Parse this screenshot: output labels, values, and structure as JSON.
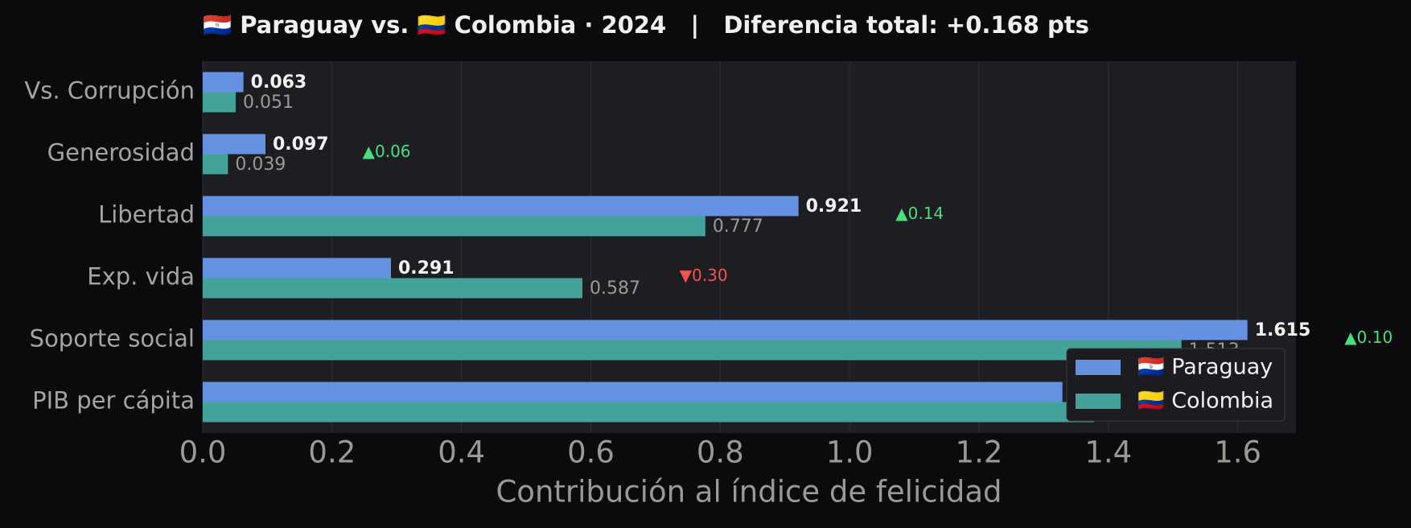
{
  "chart_data": {
    "type": "hbar",
    "title": "🇵🇾 Paraguay vs. 🇨🇴 Colombia · 2024   |   Diferencia total: +0.168 pts",
    "x_label": "Contribución al índice de felicidad",
    "categories": [
      "Vs. Corrupción",
      "Generosidad",
      "Libertad",
      "Exp. vida",
      "Soporte social",
      "PIB per cápita"
    ],
    "series": [
      {
        "name": "🇵🇾 Paraguay",
        "color": "#6591e3",
        "values": [
          0.063,
          0.097,
          0.921,
          0.291,
          1.615,
          1.329
        ]
      },
      {
        "name": "🇨🇴 Colombia",
        "color": "#43a39b",
        "values": [
          0.051,
          0.039,
          0.777,
          0.587,
          1.513,
          1.378
        ]
      }
    ],
    "delta_labels": [
      null,
      "▲0.06",
      "▲0.14",
      "▼0.30",
      "▲0.10",
      null
    ],
    "xlim": [
      0,
      1.69
    ],
    "xticks": [
      {
        "value": 0,
        "label": "0.0"
      },
      0.2,
      0.4,
      0.6,
      0.8,
      {
        "value": 1,
        "label": "1.0"
      },
      1.2,
      1.4,
      1.6
    ],
    "grid": true,
    "legend": "lower right"
  }
}
